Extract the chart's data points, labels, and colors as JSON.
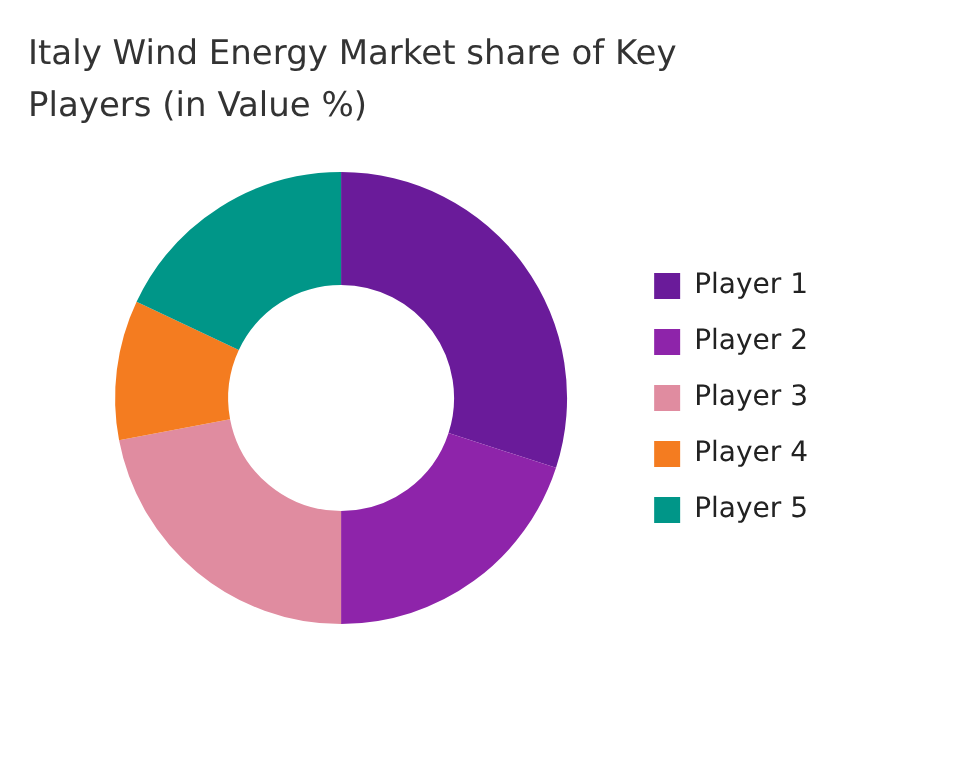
{
  "chart_data": {
    "type": "donut",
    "title": "Italy Wind Energy Market share of Key Players (in Value %)",
    "categories": [
      "Player 1",
      "Player 2",
      "Player 3",
      "Player 4",
      "Player 5"
    ],
    "values": [
      30,
      20,
      22,
      10,
      18
    ],
    "colors": [
      "#6a1b9a",
      "#8e24aa",
      "#e08ca0",
      "#f47c20",
      "#009688"
    ],
    "legend": "right"
  }
}
